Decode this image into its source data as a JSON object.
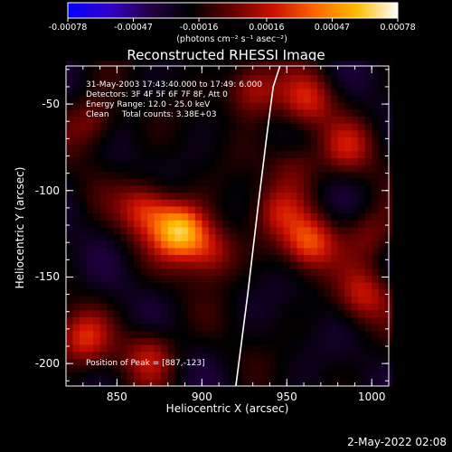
{
  "colorbar": {
    "ticks": [
      "-0.00078",
      "-0.00047",
      "-0.00016",
      "0.00016",
      "0.00047",
      "0.00078"
    ],
    "tick_values": [
      -0.00078,
      -0.00047,
      -0.00016,
      0.00016,
      0.00047,
      0.00078
    ],
    "unit_label": "(photons cm⁻² s⁻¹ asec⁻²)",
    "colors": [
      "#0000ff",
      "#3300cc",
      "#220044",
      "#000000",
      "#660000",
      "#cc1100",
      "#ff6600",
      "#ffbb00",
      "#ffffff"
    ]
  },
  "chart_data": {
    "type": "heatmap",
    "title": "Reconstructed RHESSI Image",
    "xlabel": "Heliocentric X (arcsec)",
    "ylabel": "Heliocentric Y (arcsec)",
    "xlim": [
      820,
      1010
    ],
    "ylim": [
      -213,
      -28
    ],
    "x_ticks": [
      "850",
      "900",
      "950",
      "1000"
    ],
    "x_tick_values": [
      850,
      900,
      950,
      1000
    ],
    "y_ticks": [
      "-50",
      "-100",
      "-150",
      "-200"
    ],
    "y_tick_values": [
      -50,
      -100,
      -150,
      -200
    ],
    "info_lines": [
      "31-May-2003 17:43:40.000 to 17:49: 6.000",
      "Detectors: 3F 4F 5F 6F 7F 8F, Att 0",
      "Energy Range: 12.0 - 25.0 keV",
      "Clean     Total counts: 3.38E+03"
    ],
    "peak_label": "Position of Peak = [887,-123]",
    "sources": [
      {
        "x": 887,
        "y": -123,
        "strength": 0.00078
      },
      {
        "x": 867,
        "y": -110,
        "strength": 0.00045
      },
      {
        "x": 905,
        "y": -135,
        "strength": 0.0004
      },
      {
        "x": 963,
        "y": -130,
        "strength": 0.00052
      },
      {
        "x": 945,
        "y": -112,
        "strength": 0.0003
      },
      {
        "x": 930,
        "y": -42,
        "strength": 0.00042
      },
      {
        "x": 962,
        "y": -48,
        "strength": 0.00035
      },
      {
        "x": 985,
        "y": -75,
        "strength": 0.0003
      },
      {
        "x": 835,
        "y": -60,
        "strength": 0.0003
      },
      {
        "x": 830,
        "y": -185,
        "strength": 0.0004
      },
      {
        "x": 870,
        "y": -195,
        "strength": 0.00035
      },
      {
        "x": 995,
        "y": -160,
        "strength": 0.00035
      },
      {
        "x": 1000,
        "y": -125,
        "strength": 0.00028
      },
      {
        "x": 955,
        "y": -85,
        "strength": 0.00025
      }
    ],
    "limb_curve": {
      "x": [
        920,
        927,
        933,
        938,
        942,
        946
      ],
      "y": [
        -213,
        -160,
        -110,
        -70,
        -40,
        -28
      ]
    },
    "timestamp": "2-May-2022 02:08"
  }
}
